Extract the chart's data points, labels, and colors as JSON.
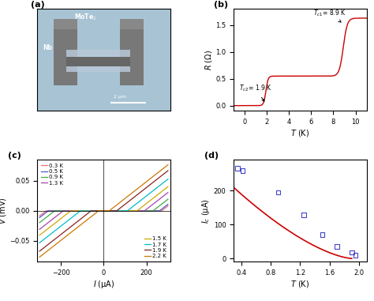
{
  "fig_width": 4.74,
  "fig_height": 3.81,
  "fig_dpi": 100,
  "panel_a_bg": "#a8c4d4",
  "panel_b": {
    "label": "(b)",
    "xlabel": "T (K)",
    "ylabel": "R (Ω)",
    "xlim": [
      -1,
      11
    ],
    "ylim": [
      -0.1,
      1.8
    ],
    "xticks": [
      0,
      2,
      4,
      6,
      8,
      10
    ],
    "yticks": [
      0.0,
      0.5,
      1.0,
      1.5
    ],
    "line_color": "#cc0000"
  },
  "panel_c": {
    "label": "(c)",
    "xlabel": "I (μA)",
    "ylabel": "V (mV)",
    "xlim": [
      -310,
      310
    ],
    "ylim": [
      -0.085,
      0.085
    ],
    "xticks": [
      -200,
      0,
      200
    ],
    "yticks": [
      -0.05,
      0.0,
      0.05
    ],
    "temperatures": [
      0.3,
      0.5,
      0.9,
      1.3,
      1.5,
      1.7,
      1.9,
      2.2
    ],
    "colors": [
      "#e87070",
      "#5555cc",
      "#44aa44",
      "#aa44aa",
      "#ccaa00",
      "#00bbcc",
      "#882222",
      "#cc7700"
    ],
    "Ic_values": [
      270,
      260,
      230,
      190,
      155,
      110,
      60,
      25
    ]
  },
  "panel_d": {
    "label": "(d)",
    "xlabel": "T (K)",
    "ylabel": "I_c (μA)",
    "xlim": [
      0.3,
      2.1
    ],
    "ylim": [
      -10,
      290
    ],
    "xticks": [
      0.4,
      0.8,
      1.2,
      1.6,
      2.0
    ],
    "yticks": [
      0,
      100,
      200
    ],
    "data_T": [
      0.35,
      0.42,
      0.9,
      1.25,
      1.5,
      1.7,
      1.9,
      1.95
    ],
    "data_Ic": [
      265,
      258,
      195,
      128,
      70,
      35,
      18,
      10
    ],
    "marker_color": "#4444cc",
    "line_color": "#cc0000",
    "Tc": 1.9,
    "Ic0": 270,
    "n": 1.5
  }
}
